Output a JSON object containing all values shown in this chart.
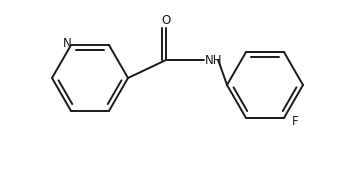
{
  "bg_color": "#ffffff",
  "line_color": "#1a1a1a",
  "line_width": 1.4,
  "font_size_atom": 8.5,
  "figsize": [
    3.55,
    1.7
  ],
  "dpi": 100,
  "xlim": [
    0,
    355
  ],
  "ylim": [
    0,
    170
  ]
}
